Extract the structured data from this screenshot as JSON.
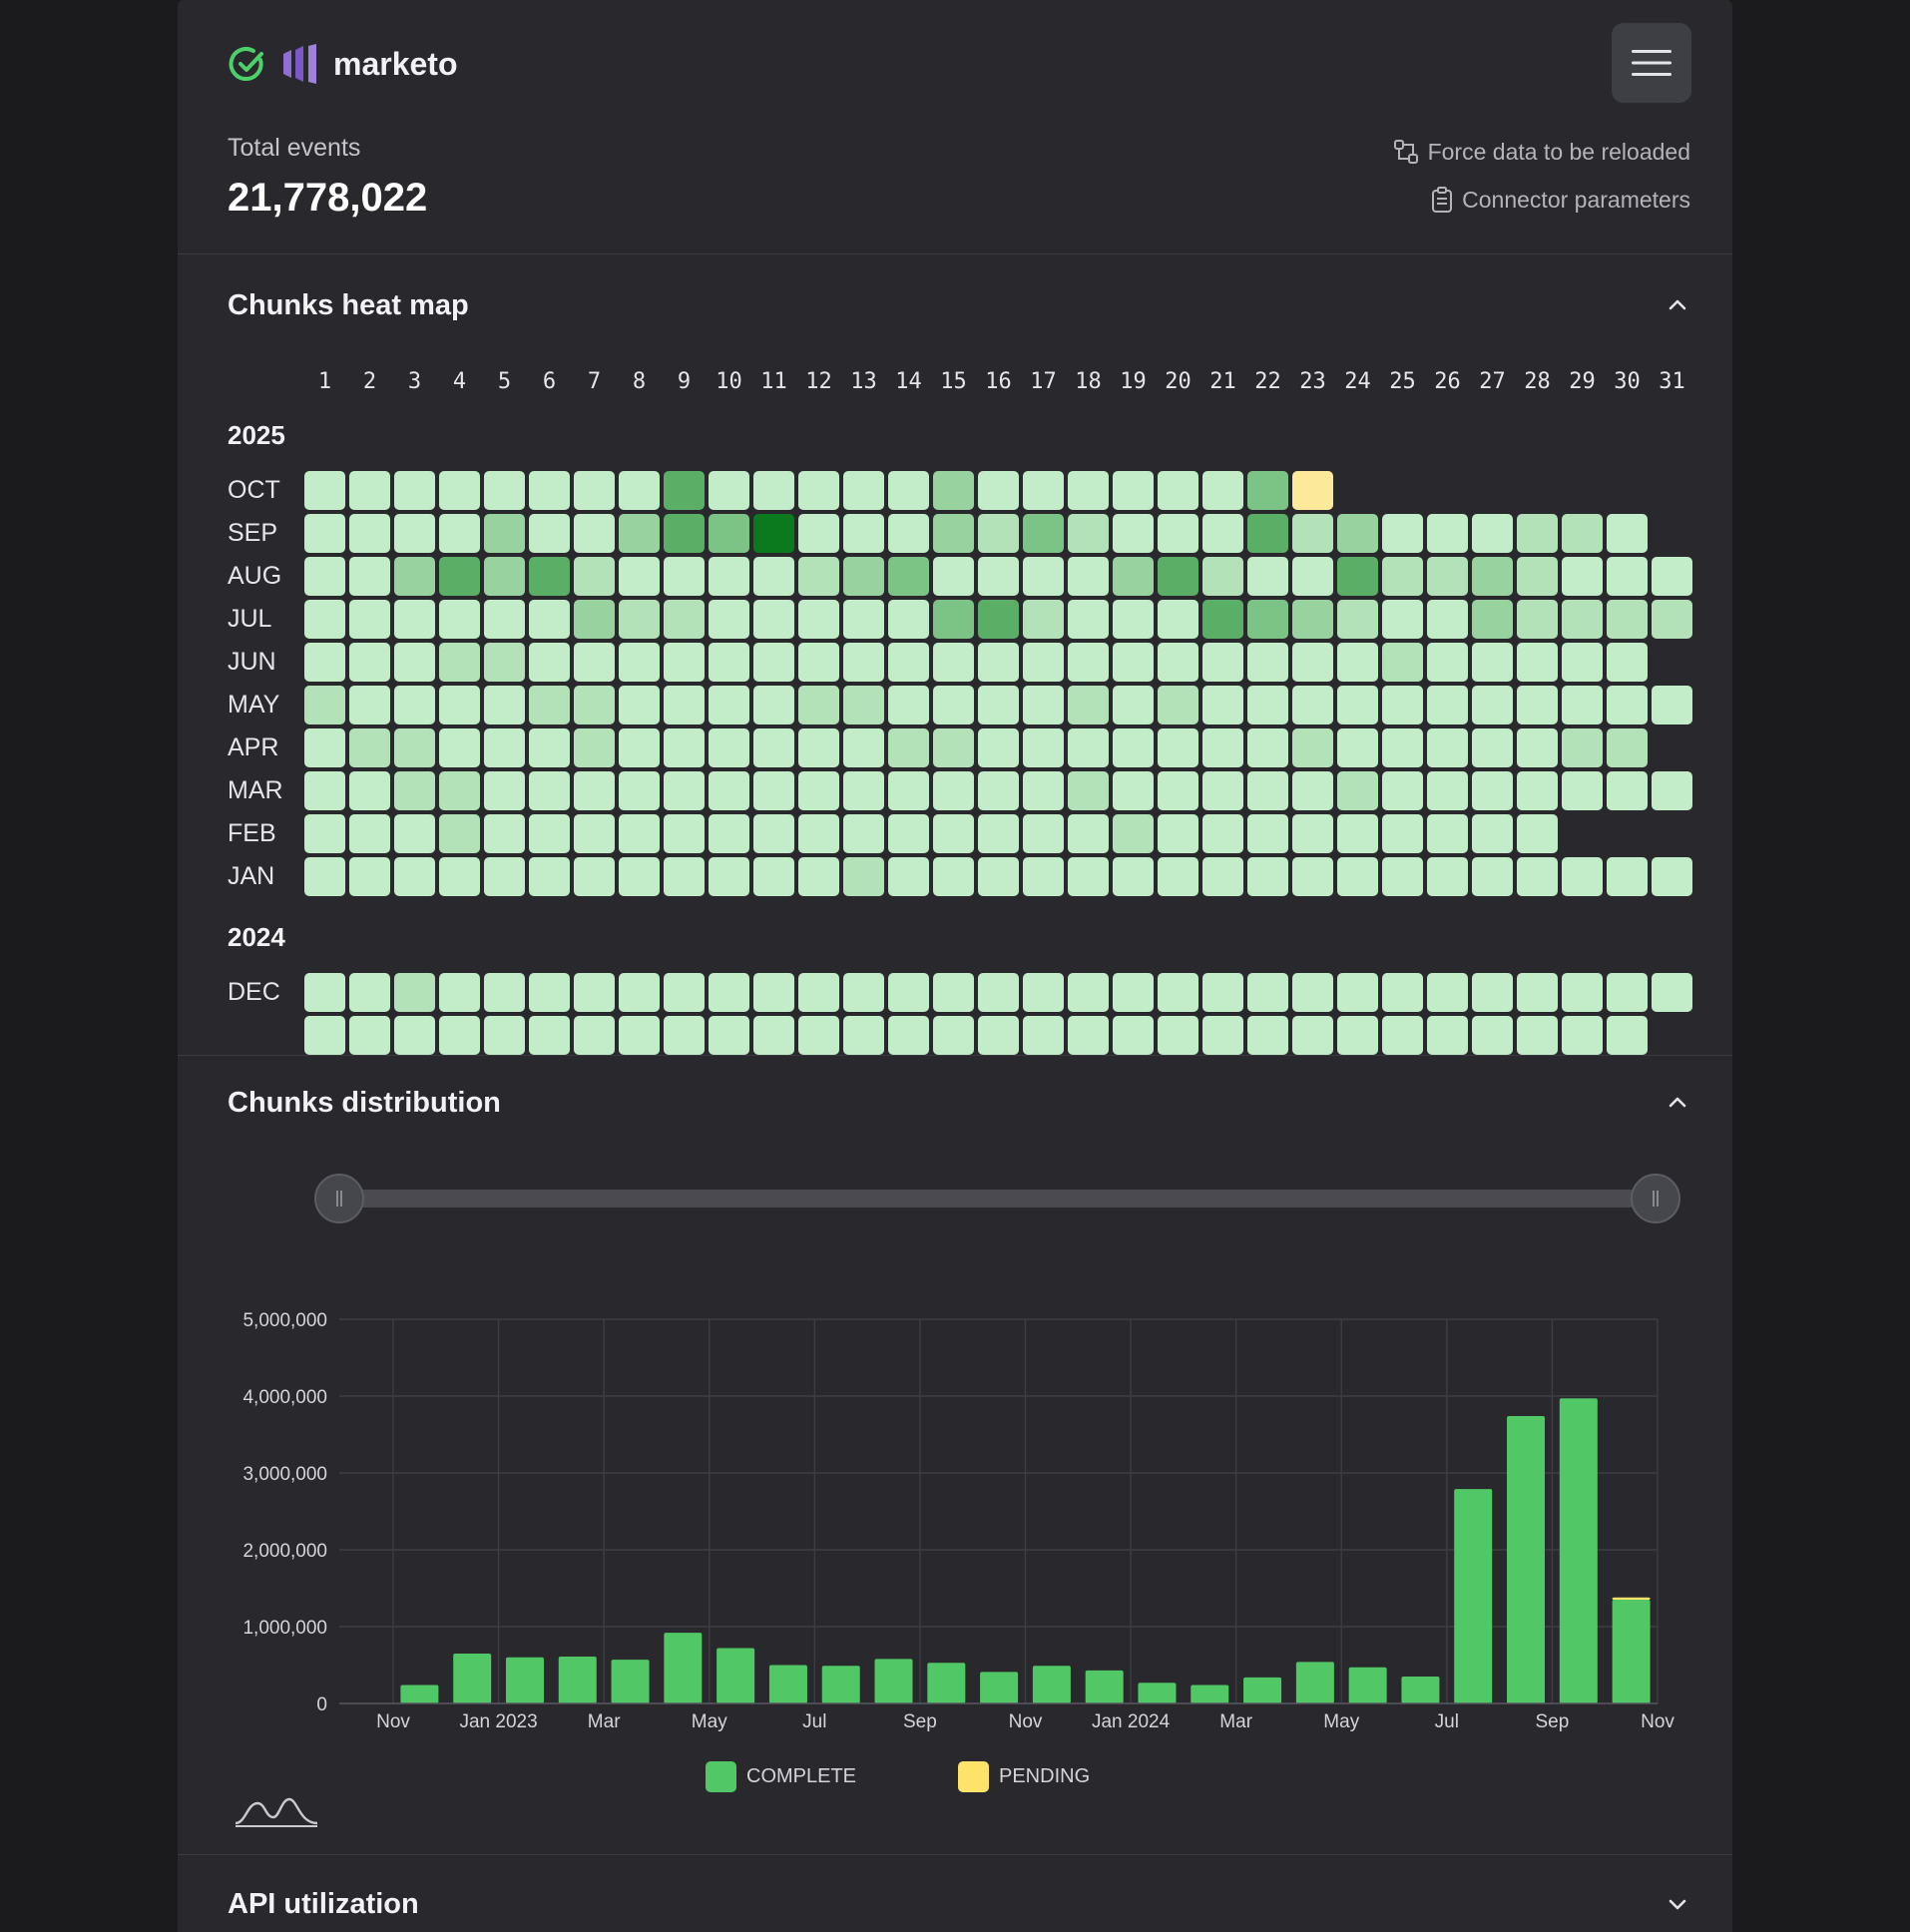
{
  "header": {
    "app_name": "marketo",
    "total_label": "Total events",
    "total_value": "21,778,022",
    "reload_label": "Force data to be reloaded",
    "params_label": "Connector parameters"
  },
  "heatmap": {
    "title": "Chunks heat map",
    "days": [
      "1",
      "2",
      "3",
      "4",
      "5",
      "6",
      "7",
      "8",
      "9",
      "10",
      "11",
      "12",
      "13",
      "14",
      "15",
      "16",
      "17",
      "18",
      "19",
      "20",
      "21",
      "22",
      "23",
      "24",
      "25",
      "26",
      "27",
      "28",
      "29",
      "30",
      "31"
    ],
    "levels_legend": [
      "#c3ecc8",
      "#b3e2b8",
      "#98d39f",
      "#7cc486",
      "#5aae66",
      "#0b7a1f",
      "#fde99a"
    ],
    "years": [
      {
        "year": "2025",
        "months": [
          {
            "name": "OCT",
            "cells": [
              0,
              0,
              0,
              0,
              0,
              0,
              0,
              0,
              4,
              0,
              0,
              0,
              0,
              0,
              2,
              0,
              0,
              0,
              0,
              0,
              0,
              3,
              6
            ]
          },
          {
            "name": "SEP",
            "cells": [
              0,
              0,
              0,
              0,
              2,
              0,
              0,
              2,
              4,
              3,
              5,
              0,
              0,
              0,
              2,
              1,
              3,
              1,
              0,
              0,
              0,
              4,
              1,
              2,
              0,
              0,
              0,
              1,
              1,
              0
            ]
          },
          {
            "name": "AUG",
            "cells": [
              0,
              0,
              2,
              4,
              2,
              4,
              1,
              0,
              0,
              0,
              0,
              1,
              2,
              3,
              0,
              0,
              0,
              0,
              2,
              4,
              1,
              0,
              0,
              4,
              1,
              1,
              2,
              1,
              0,
              0,
              0
            ]
          },
          {
            "name": "JUL",
            "cells": [
              0,
              0,
              0,
              0,
              0,
              0,
              2,
              1,
              1,
              0,
              0,
              0,
              0,
              0,
              3,
              4,
              1,
              0,
              0,
              0,
              4,
              3,
              2,
              1,
              0,
              0,
              2,
              1,
              1,
              1,
              1
            ]
          },
          {
            "name": "JUN",
            "cells": [
              0,
              0,
              0,
              1,
              1,
              0,
              0,
              0,
              0,
              0,
              0,
              0,
              0,
              0,
              0,
              0,
              0,
              0,
              0,
              0,
              0,
              0,
              0,
              0,
              1,
              0,
              0,
              0,
              0,
              0
            ]
          },
          {
            "name": "MAY",
            "cells": [
              1,
              0,
              0,
              0,
              0,
              1,
              1,
              0,
              0,
              0,
              0,
              1,
              1,
              0,
              0,
              0,
              0,
              1,
              0,
              1,
              0,
              0,
              0,
              0,
              0,
              0,
              0,
              0,
              0,
              0,
              0
            ]
          },
          {
            "name": "APR",
            "cells": [
              0,
              1,
              1,
              0,
              0,
              0,
              1,
              0,
              0,
              0,
              0,
              0,
              0,
              1,
              1,
              0,
              0,
              0,
              0,
              0,
              0,
              0,
              1,
              0,
              0,
              0,
              0,
              0,
              1,
              1
            ]
          },
          {
            "name": "MAR",
            "cells": [
              0,
              0,
              1,
              1,
              0,
              0,
              0,
              0,
              0,
              0,
              0,
              0,
              0,
              0,
              0,
              0,
              0,
              1,
              0,
              0,
              0,
              0,
              0,
              1,
              0,
              0,
              0,
              0,
              0,
              0,
              0
            ]
          },
          {
            "name": "FEB",
            "cells": [
              0,
              0,
              0,
              1,
              0,
              0,
              0,
              0,
              0,
              0,
              0,
              0,
              0,
              0,
              0,
              0,
              0,
              0,
              1,
              0,
              0,
              0,
              0,
              0,
              0,
              0,
              0,
              0
            ]
          },
          {
            "name": "JAN",
            "cells": [
              0,
              0,
              0,
              0,
              0,
              0,
              0,
              0,
              0,
              0,
              0,
              0,
              1,
              0,
              0,
              0,
              0,
              0,
              0,
              0,
              0,
              0,
              0,
              0,
              0,
              0,
              0,
              0,
              0,
              0,
              0
            ]
          }
        ]
      },
      {
        "year": "2024",
        "months": [
          {
            "name": "DEC",
            "cells": [
              0,
              0,
              1,
              0,
              0,
              0,
              0,
              0,
              0,
              0,
              0,
              0,
              0,
              0,
              0,
              0,
              0,
              0,
              0,
              0,
              0,
              0,
              0,
              0,
              0,
              0,
              0,
              0,
              0,
              0,
              0
            ]
          }
        ]
      }
    ]
  },
  "distribution": {
    "title": "Chunks distribution",
    "legend": [
      {
        "label": "COMPLETE",
        "color": "#52c765"
      },
      {
        "label": "PENDING",
        "color": "#fde36a"
      }
    ]
  },
  "chart_data": {
    "type": "bar",
    "stacked": true,
    "x": [
      "2022-11",
      "2022-12",
      "2023-01",
      "2023-02",
      "2023-03",
      "2023-04",
      "2023-05",
      "2023-06",
      "2023-07",
      "2023-08",
      "2023-09",
      "2023-10",
      "2023-11",
      "2023-12",
      "2024-01",
      "2024-02",
      "2024-03",
      "2024-04",
      "2024-05",
      "2024-06",
      "2024-07",
      "2024-08",
      "2024-09",
      "2024-10",
      "2024-11"
    ],
    "series": [
      {
        "name": "COMPLETE",
        "color": "#52c765",
        "values": [
          240000,
          650000,
          600000,
          610000,
          570000,
          920000,
          720000,
          500000,
          490000,
          580000,
          530000,
          410000,
          490000,
          430000,
          270000,
          240000,
          340000,
          540000,
          470000,
          350000,
          2790000,
          3740000,
          3970000,
          1350000,
          0
        ]
      },
      {
        "name": "PENDING",
        "color": "#fde36a",
        "values": [
          0,
          0,
          0,
          0,
          0,
          0,
          0,
          0,
          0,
          0,
          0,
          0,
          0,
          0,
          0,
          0,
          0,
          0,
          0,
          0,
          0,
          0,
          0,
          30000,
          0
        ]
      }
    ],
    "xtick_labels": [
      "Nov",
      "Jan 2023",
      "Mar",
      "May",
      "Jul",
      "Sep",
      "Nov",
      "Jan 2024",
      "Mar",
      "May",
      "Jul",
      "Sep",
      "Nov"
    ],
    "ytick_labels": [
      "5,000,000",
      "4,000,000",
      "3,000,000",
      "2,000,000",
      "1,000,000",
      "0"
    ],
    "ylim": [
      0,
      5000000
    ],
    "grid": true,
    "legend_position": "bottom"
  },
  "api": {
    "title": "API utilization"
  }
}
